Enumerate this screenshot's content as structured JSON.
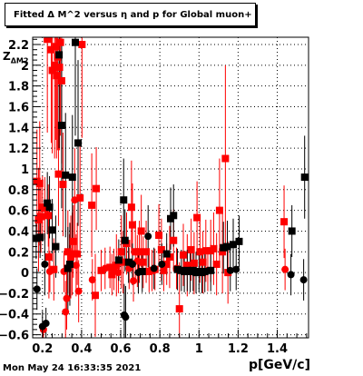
{
  "chart_data": {
    "type": "scatter",
    "title": "Fitted Δ M^2 versus η and p for Global muon+",
    "xlabel": "p[GeV/c]",
    "ylabel": "Z_{ΔM2}",
    "ylabel_display": "Z",
    "ylabel_sub": "ΔM2",
    "xlim": [
      0.15,
      1.56
    ],
    "ylim": [
      -0.63,
      2.27
    ],
    "xticks": [
      0.2,
      0.4,
      0.6,
      0.8,
      1.0,
      1.2,
      1.4
    ],
    "xtick_labels": [
      "0.2",
      "0.4",
      "0.6",
      "0.8",
      "1",
      "1.2",
      "1.4"
    ],
    "yticks": [
      -0.6,
      -0.4,
      -0.2,
      0,
      0.2,
      0.4,
      0.6,
      0.8,
      1.0,
      1.2,
      1.4,
      1.6,
      1.8,
      2.0,
      2.2
    ],
    "ytick_labels": [
      "−0.6",
      "−0.4",
      "−0.2",
      "0",
      "0.2",
      "0.4",
      "0.6",
      "0.8",
      "1",
      "1.2",
      "1.4",
      "1.6",
      "1.8",
      "2",
      "2.2"
    ],
    "grid": true,
    "legend": "none",
    "date_stamp": "Mon May 24 16:33:35 2021",
    "series": [
      {
        "color": "#ff0000",
        "points": [
          {
            "x": 0.172,
            "y": 0.88,
            "m": "sq",
            "e": 0.5
          },
          {
            "x": 0.18,
            "y": 0.51,
            "m": "sq",
            "e": 0.5
          },
          {
            "x": 0.186,
            "y": 0.86,
            "m": "sq",
            "e": 0.6
          },
          {
            "x": 0.192,
            "y": 0.54,
            "m": "sq",
            "e": 0.35
          },
          {
            "x": 0.2,
            "y": 0.63,
            "m": "sq",
            "e": 0.3
          },
          {
            "x": 0.205,
            "y": -0.55,
            "m": "ci",
            "e": 0.08
          },
          {
            "x": 0.212,
            "y": 0.62,
            "m": "sq",
            "e": 0.3
          },
          {
            "x": 0.225,
            "y": 2.25,
            "m": "sq",
            "e": 0.9
          },
          {
            "x": 0.23,
            "y": 0.55,
            "m": "sq",
            "e": 0.3
          },
          {
            "x": 0.233,
            "y": 0.15,
            "m": "sq",
            "e": 0.4
          },
          {
            "x": 0.238,
            "y": 0.01,
            "m": "ci",
            "e": 0.2
          },
          {
            "x": 0.245,
            "y": 2.15,
            "m": "sq",
            "e": 0.9
          },
          {
            "x": 0.25,
            "y": 1.95,
            "m": "sq",
            "e": 0.8
          },
          {
            "x": 0.258,
            "y": 0.03,
            "m": "sq",
            "e": 0.3
          },
          {
            "x": 0.262,
            "y": 2.0,
            "m": "sq",
            "e": 0.9
          },
          {
            "x": 0.268,
            "y": 2.18,
            "m": "sq",
            "e": 0.9
          },
          {
            "x": 0.272,
            "y": 1.9,
            "m": "sq",
            "e": 0.8
          },
          {
            "x": 0.277,
            "y": 2.08,
            "m": "sq",
            "e": 0.9
          },
          {
            "x": 0.282,
            "y": 0.95,
            "m": "sq",
            "e": 0.5
          },
          {
            "x": 0.287,
            "y": 1.98,
            "m": "sq",
            "e": 0.8
          },
          {
            "x": 0.292,
            "y": 2.22,
            "m": "sq",
            "e": 0.9
          },
          {
            "x": 0.298,
            "y": 1.85,
            "m": "sq",
            "e": 0.8
          },
          {
            "x": 0.305,
            "y": 0.85,
            "m": "sq",
            "e": 0.5
          },
          {
            "x": 0.31,
            "y": 0.01,
            "m": "ci",
            "e": 0.2
          },
          {
            "x": 0.318,
            "y": -0.38,
            "m": "ci",
            "e": 0.3
          },
          {
            "x": 0.324,
            "y": -0.25,
            "m": "ci",
            "e": 0.3
          },
          {
            "x": 0.33,
            "y": 0.2,
            "m": "sq",
            "e": 0.4
          },
          {
            "x": 0.338,
            "y": 0.07,
            "m": "ci",
            "e": 0.3
          },
          {
            "x": 0.345,
            "y": 0.15,
            "m": "sq",
            "e": 0.4
          },
          {
            "x": 0.352,
            "y": 0.18,
            "m": "sq",
            "e": 0.4
          },
          {
            "x": 0.358,
            "y": 0.3,
            "m": "sq",
            "e": 0.35
          },
          {
            "x": 0.365,
            "y": 0.7,
            "m": "ci",
            "e": 0.5
          },
          {
            "x": 0.372,
            "y": 0.07,
            "m": "ci",
            "e": 0.3
          },
          {
            "x": 0.378,
            "y": 0.18,
            "m": "sq",
            "e": 0.3
          },
          {
            "x": 0.385,
            "y": -0.18,
            "m": "ci",
            "e": 0.3
          },
          {
            "x": 0.392,
            "y": 0.72,
            "m": "sq",
            "e": 0.5
          },
          {
            "x": 0.402,
            "y": 2.2,
            "m": "sq",
            "e": 0.9
          },
          {
            "x": 0.452,
            "y": 0.65,
            "m": "sq",
            "e": 0.5
          },
          {
            "x": 0.455,
            "y": -0.07,
            "m": "ci",
            "e": 0.2
          },
          {
            "x": 0.47,
            "y": -0.22,
            "m": "sq",
            "e": 0.4
          },
          {
            "x": 0.475,
            "y": 0.81,
            "m": "sq",
            "e": 0.4
          },
          {
            "x": 0.5,
            "y": 0.02,
            "m": "sq",
            "e": 0.2
          },
          {
            "x": 0.52,
            "y": 0.04,
            "m": "ci",
            "e": 0.2
          },
          {
            "x": 0.545,
            "y": 0.05,
            "m": "sq",
            "e": 0.2
          },
          {
            "x": 0.555,
            "y": -0.02,
            "m": "sq",
            "e": 0.2
          },
          {
            "x": 0.565,
            "y": 0.03,
            "m": "ci",
            "e": 0.2
          },
          {
            "x": 0.578,
            "y": 0.07,
            "m": "sq",
            "e": 0.3
          },
          {
            "x": 0.588,
            "y": 0.0,
            "m": "ci",
            "e": 0.2
          },
          {
            "x": 0.603,
            "y": 0.2,
            "m": "sq",
            "e": 0.35
          },
          {
            "x": 0.612,
            "y": 0.1,
            "m": "sq",
            "e": 0.3
          },
          {
            "x": 0.63,
            "y": 0.28,
            "m": "sq",
            "e": 0.3
          },
          {
            "x": 0.643,
            "y": 0.04,
            "m": "ci",
            "e": 0.2
          },
          {
            "x": 0.655,
            "y": 0.63,
            "m": "sq",
            "e": 0.45
          },
          {
            "x": 0.66,
            "y": 0.46,
            "m": "sq",
            "e": 0.4
          },
          {
            "x": 0.665,
            "y": -0.08,
            "m": "ci",
            "e": 0.2
          },
          {
            "x": 0.675,
            "y": 0.2,
            "m": "sq",
            "e": 0.3
          },
          {
            "x": 0.685,
            "y": 0.11,
            "m": "ci",
            "e": 0.25
          },
          {
            "x": 0.695,
            "y": 0.2,
            "m": "sq",
            "e": 0.3
          },
          {
            "x": 0.705,
            "y": 0.4,
            "m": "sq",
            "e": 0.35
          },
          {
            "x": 0.715,
            "y": 0.1,
            "m": "sq",
            "e": 0.25
          },
          {
            "x": 0.73,
            "y": 0.2,
            "m": "sq",
            "e": 0.3
          },
          {
            "x": 0.745,
            "y": 0.01,
            "m": "sq",
            "e": 0.2
          },
          {
            "x": 0.76,
            "y": 0.02,
            "m": "sq",
            "e": 0.2
          },
          {
            "x": 0.775,
            "y": 0.03,
            "m": "sq",
            "e": 0.2
          },
          {
            "x": 0.795,
            "y": 0.36,
            "m": "sq",
            "e": 0.3
          },
          {
            "x": 0.808,
            "y": 0.22,
            "m": "sq",
            "e": 0.3
          },
          {
            "x": 0.82,
            "y": 0.02,
            "m": "sq",
            "e": 0.2
          },
          {
            "x": 0.835,
            "y": 0.08,
            "m": "sq",
            "e": 0.2
          },
          {
            "x": 0.85,
            "y": 0.15,
            "m": "sq",
            "e": 0.3
          },
          {
            "x": 0.87,
            "y": 0.31,
            "m": "sq",
            "e": 0.3
          },
          {
            "x": 0.885,
            "y": 0.04,
            "m": "ci",
            "e": 0.2
          },
          {
            "x": 0.9,
            "y": -0.35,
            "m": "sq",
            "e": 0.45
          },
          {
            "x": 0.92,
            "y": 0.17,
            "m": "sq",
            "e": 0.3
          },
          {
            "x": 0.94,
            "y": 0.07,
            "m": "sq",
            "e": 0.3
          },
          {
            "x": 0.96,
            "y": 0.22,
            "m": "sq",
            "e": 0.3
          },
          {
            "x": 0.975,
            "y": 0.09,
            "m": "sq",
            "e": 0.3
          },
          {
            "x": 0.99,
            "y": 0.53,
            "m": "sq",
            "e": 0.35
          },
          {
            "x": 1.005,
            "y": 0.2,
            "m": "sq",
            "e": 0.3
          },
          {
            "x": 1.02,
            "y": 0.1,
            "m": "sq",
            "e": 0.3
          },
          {
            "x": 1.035,
            "y": 0.21,
            "m": "sq",
            "e": 0.3
          },
          {
            "x": 1.045,
            "y": 0.02,
            "m": "ci",
            "e": 0.2
          },
          {
            "x": 1.06,
            "y": 0.21,
            "m": "sq",
            "e": 0.3
          },
          {
            "x": 1.075,
            "y": 0.23,
            "m": "sq",
            "e": 0.35
          },
          {
            "x": 1.09,
            "y": 0.08,
            "m": "sq",
            "e": 0.3
          },
          {
            "x": 1.105,
            "y": 0.6,
            "m": "sq",
            "e": 0.5
          },
          {
            "x": 1.12,
            "y": 0.2,
            "m": "sq",
            "e": 0.4
          },
          {
            "x": 1.135,
            "y": 1.1,
            "m": "sq",
            "e": 0.9
          },
          {
            "x": 1.148,
            "y": 0.0,
            "m": "sq",
            "e": 0.3
          },
          {
            "x": 1.435,
            "y": 0.49,
            "m": "sq",
            "e": 0.35
          },
          {
            "x": 1.44,
            "y": 0.03,
            "m": "ci",
            "e": 0.2
          }
        ]
      },
      {
        "color": "#000000",
        "points": [
          {
            "x": 0.168,
            "y": 0.33,
            "m": "sq",
            "e": 0.2
          },
          {
            "x": 0.172,
            "y": -0.16,
            "m": "ci",
            "e": 0.2
          },
          {
            "x": 0.188,
            "y": 0.34,
            "m": "sq",
            "e": 0.2
          },
          {
            "x": 0.2,
            "y": -0.52,
            "m": "ci",
            "e": 0.15
          },
          {
            "x": 0.212,
            "y": 0.08,
            "m": "ci",
            "e": 0.3
          },
          {
            "x": 0.218,
            "y": -0.49,
            "m": "ci",
            "e": 0.15
          },
          {
            "x": 0.225,
            "y": 0.67,
            "m": "sq",
            "e": 0.3
          },
          {
            "x": 0.236,
            "y": 0.63,
            "m": "sq",
            "e": 0.3
          },
          {
            "x": 0.25,
            "y": 0.41,
            "m": "sq",
            "e": 0.3
          },
          {
            "x": 0.268,
            "y": 0.25,
            "m": "sq",
            "e": 0.3
          },
          {
            "x": 0.285,
            "y": 2.1,
            "m": "sq",
            "e": 0.9
          },
          {
            "x": 0.298,
            "y": 1.42,
            "m": "sq",
            "e": 0.8
          },
          {
            "x": 0.318,
            "y": 0.94,
            "m": "sq",
            "e": 0.6
          },
          {
            "x": 0.33,
            "y": 0.04,
            "m": "sq",
            "e": 0.4
          },
          {
            "x": 0.34,
            "y": 0.08,
            "m": "sq",
            "e": 0.4
          },
          {
            "x": 0.353,
            "y": 0.92,
            "m": "sq",
            "e": 0.6
          },
          {
            "x": 0.368,
            "y": 2.22,
            "m": "sq",
            "e": 0.9
          },
          {
            "x": 0.382,
            "y": 1.25,
            "m": "sq",
            "e": 0.8
          },
          {
            "x": 0.59,
            "y": 0.12,
            "m": "sq",
            "e": 0.2
          },
          {
            "x": 0.615,
            "y": 0.7,
            "m": "sq",
            "e": 0.4
          },
          {
            "x": 0.618,
            "y": -0.41,
            "m": "ci",
            "e": 0.3
          },
          {
            "x": 0.622,
            "y": 0.31,
            "m": "sq",
            "e": 0.3
          },
          {
            "x": 0.625,
            "y": -0.43,
            "m": "ci",
            "e": 0.3
          },
          {
            "x": 0.64,
            "y": 0.1,
            "m": "sq",
            "e": 0.2
          },
          {
            "x": 0.66,
            "y": 0.08,
            "m": "ci",
            "e": 0.2
          },
          {
            "x": 0.69,
            "y": 0.0,
            "m": "ci",
            "e": 0.2
          },
          {
            "x": 0.71,
            "y": 0.01,
            "m": "sq",
            "e": 0.2
          },
          {
            "x": 0.74,
            "y": 0.35,
            "m": "ci",
            "e": 0.3
          },
          {
            "x": 0.77,
            "y": 0.04,
            "m": "ci",
            "e": 0.2
          },
          {
            "x": 0.81,
            "y": 0.08,
            "m": "ci",
            "e": 0.2
          },
          {
            "x": 0.835,
            "y": 0.18,
            "m": "sq",
            "e": 0.2
          },
          {
            "x": 0.855,
            "y": 0.52,
            "m": "sq",
            "e": 0.3
          },
          {
            "x": 0.87,
            "y": 0.55,
            "m": "sq",
            "e": 0.3
          },
          {
            "x": 0.89,
            "y": 0.03,
            "m": "sq",
            "e": 0.2
          },
          {
            "x": 0.91,
            "y": 0.02,
            "m": "sq",
            "e": 0.2
          },
          {
            "x": 0.925,
            "y": 0.01,
            "m": "sq",
            "e": 0.2
          },
          {
            "x": 0.94,
            "y": 0.02,
            "m": "sq",
            "e": 0.2
          },
          {
            "x": 0.955,
            "y": 0.01,
            "m": "sq",
            "e": 0.2
          },
          {
            "x": 0.97,
            "y": 0.02,
            "m": "sq",
            "e": 0.2
          },
          {
            "x": 0.985,
            "y": 0.0,
            "m": "sq",
            "e": 0.2
          },
          {
            "x": 1.0,
            "y": 0.01,
            "m": "sq",
            "e": 0.2
          },
          {
            "x": 1.015,
            "y": 0.0,
            "m": "sq",
            "e": 0.2
          },
          {
            "x": 1.03,
            "y": 0.01,
            "m": "sq",
            "e": 0.2
          },
          {
            "x": 1.06,
            "y": 0.02,
            "m": "sq",
            "e": 0.2
          },
          {
            "x": 1.125,
            "y": 0.24,
            "m": "sq",
            "e": 0.25
          },
          {
            "x": 1.145,
            "y": 0.25,
            "m": "sq",
            "e": 0.25
          },
          {
            "x": 1.16,
            "y": 0.02,
            "m": "ci",
            "e": 0.2
          },
          {
            "x": 1.175,
            "y": 0.27,
            "m": "sq",
            "e": 0.25
          },
          {
            "x": 1.19,
            "y": 0.03,
            "m": "ci",
            "e": 0.2
          },
          {
            "x": 1.205,
            "y": 0.3,
            "m": "sq",
            "e": 0.25
          },
          {
            "x": 1.47,
            "y": -0.02,
            "m": "ci",
            "e": 0.2
          },
          {
            "x": 1.475,
            "y": 0.4,
            "m": "sq",
            "e": 0.25
          },
          {
            "x": 1.535,
            "y": -0.07,
            "m": "ci",
            "e": 0.2
          },
          {
            "x": 1.54,
            "y": 0.92,
            "m": "sq",
            "e": 0.4
          }
        ]
      }
    ]
  }
}
